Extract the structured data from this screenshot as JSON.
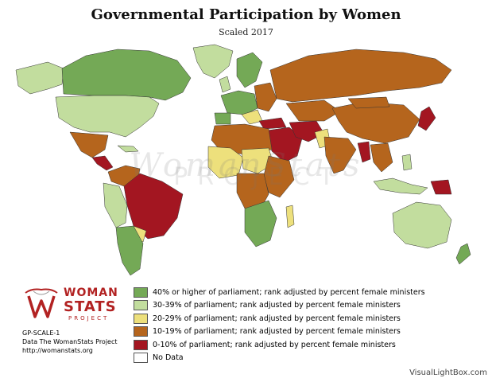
{
  "map": {
    "title": "Governmental Participation by Women",
    "subtitle": "Scaled 2017",
    "watermark": "WomanStats",
    "watermark_sub": "PROJECT",
    "legend": [
      {
        "label": "40% or higher of parliament; rank adjusted by percent female ministers",
        "color": "#74a956"
      },
      {
        "label": "30-39% of parliament; rank adjusted by percent female ministers",
        "color": "#c2dd9e"
      },
      {
        "label": "20-29% of parliament; rank adjusted by percent female ministers",
        "color": "#ede07c"
      },
      {
        "label": "10-19% of parliament; rank adjusted by percent female ministers",
        "color": "#b5651d"
      },
      {
        "label": "0-10% of parliament; rank adjusted by percent female ministers",
        "color": "#a31621"
      },
      {
        "label": "No Data",
        "color": "#ffffff"
      }
    ],
    "logo": {
      "line1": "WOMAN",
      "line2": "STATS",
      "line3": "PROJECT"
    },
    "credits": [
      "GP-SCALE-1",
      "Data The WomanStats Project",
      "http://womanstats.org"
    ],
    "source": "VisualLightBox.com"
  }
}
